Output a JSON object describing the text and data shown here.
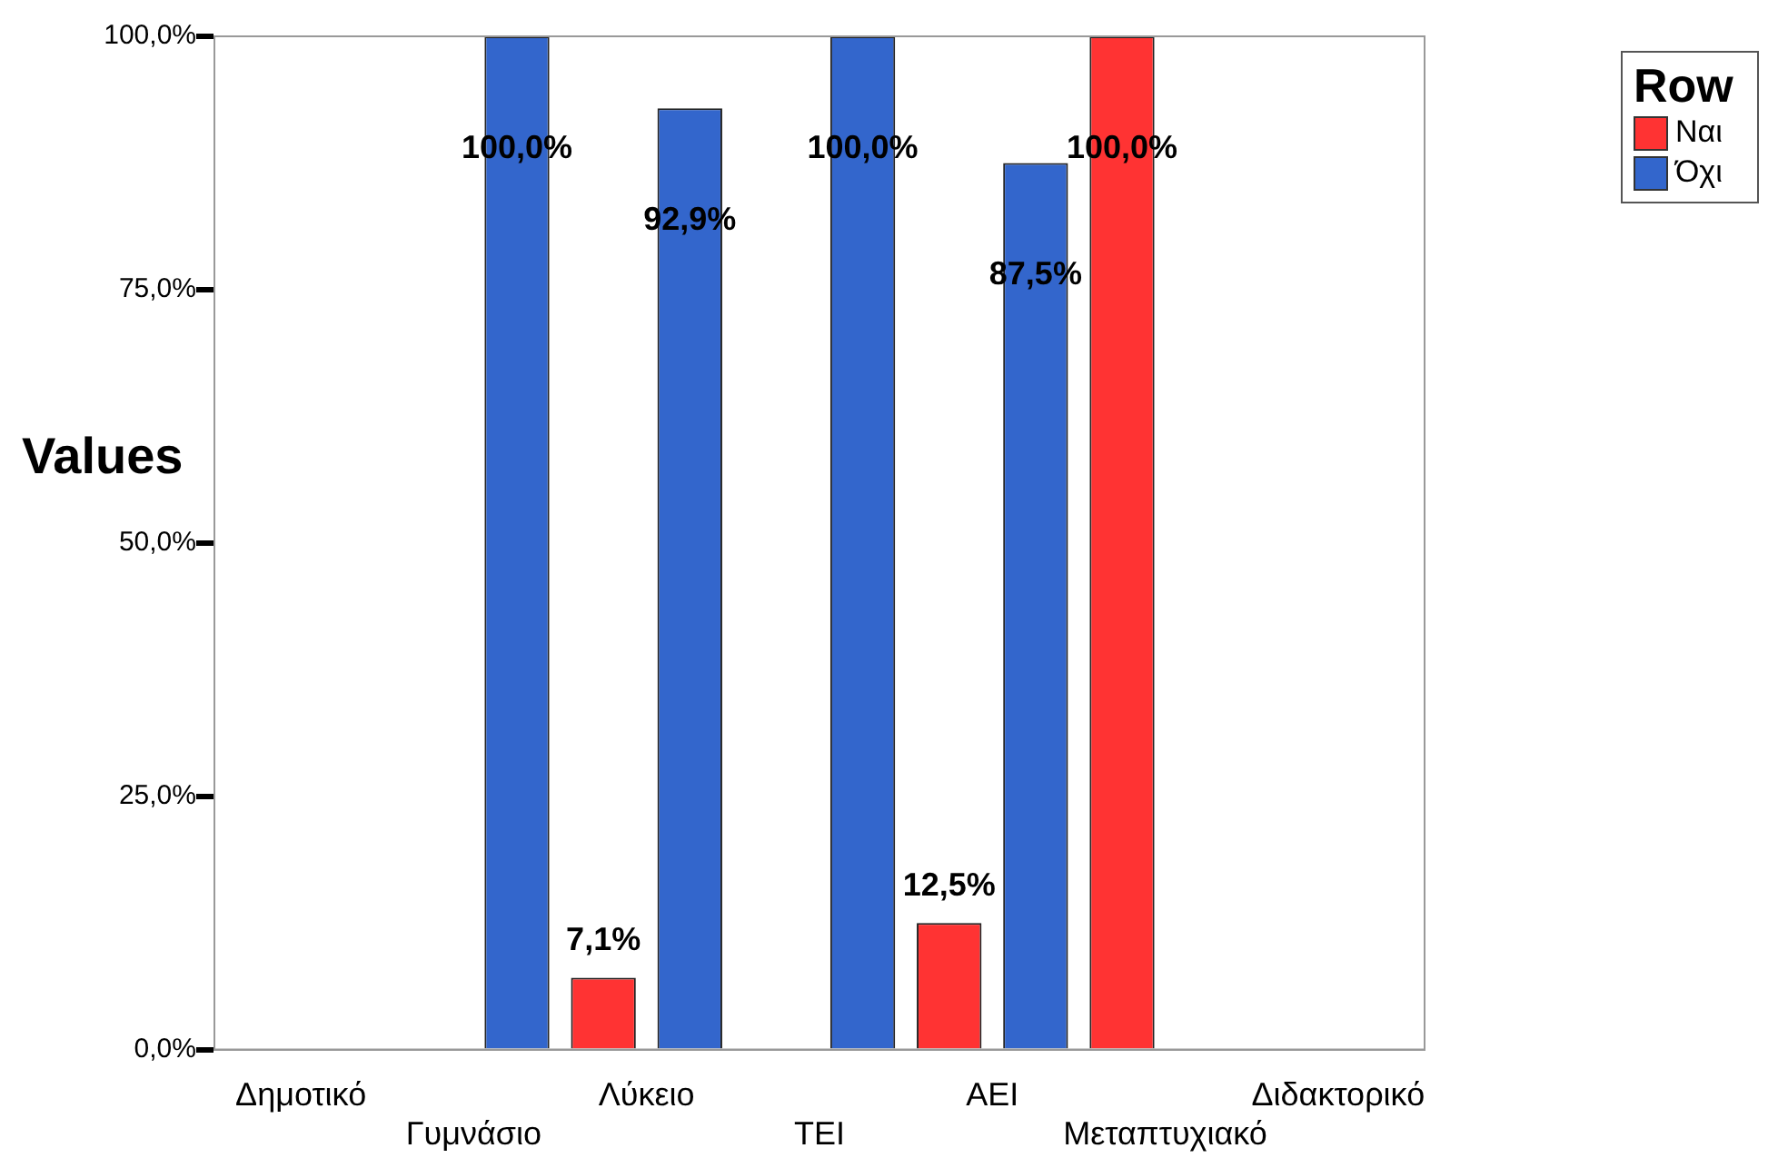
{
  "chart_data": {
    "type": "bar",
    "ylabel": "Values",
    "legend_title": "Row",
    "categories": [
      "Δημοτικό",
      "Γυμνάσιο",
      "Λύκειο",
      "ΤΕΙ",
      "ΑΕΙ",
      "Μεταπτυχιακό",
      "Διδακτορικό"
    ],
    "series": [
      {
        "name": "Ναι",
        "color": "#ff3333",
        "values": [
          null,
          null,
          7.1,
          null,
          12.5,
          100,
          null
        ],
        "value_labels": [
          null,
          null,
          "7,1%",
          null,
          "12,5%",
          "100,0%",
          null
        ]
      },
      {
        "name": "Όχι",
        "color": "#3366cc",
        "values": [
          null,
          100,
          92.9,
          100,
          87.5,
          null,
          null
        ],
        "value_labels": [
          null,
          "100,0%",
          "92,9%",
          "100,0%",
          "87,5%",
          null,
          null
        ]
      }
    ],
    "ylim": [
      0,
      100
    ],
    "yticks": [
      {
        "value": 0,
        "label": "0,0%"
      },
      {
        "value": 25,
        "label": "25,0%"
      },
      {
        "value": 50,
        "label": "50,0%"
      },
      {
        "value": 75,
        "label": "75,0%"
      },
      {
        "value": 100,
        "label": "100,0%"
      }
    ],
    "grid": false,
    "legend": "top right"
  }
}
